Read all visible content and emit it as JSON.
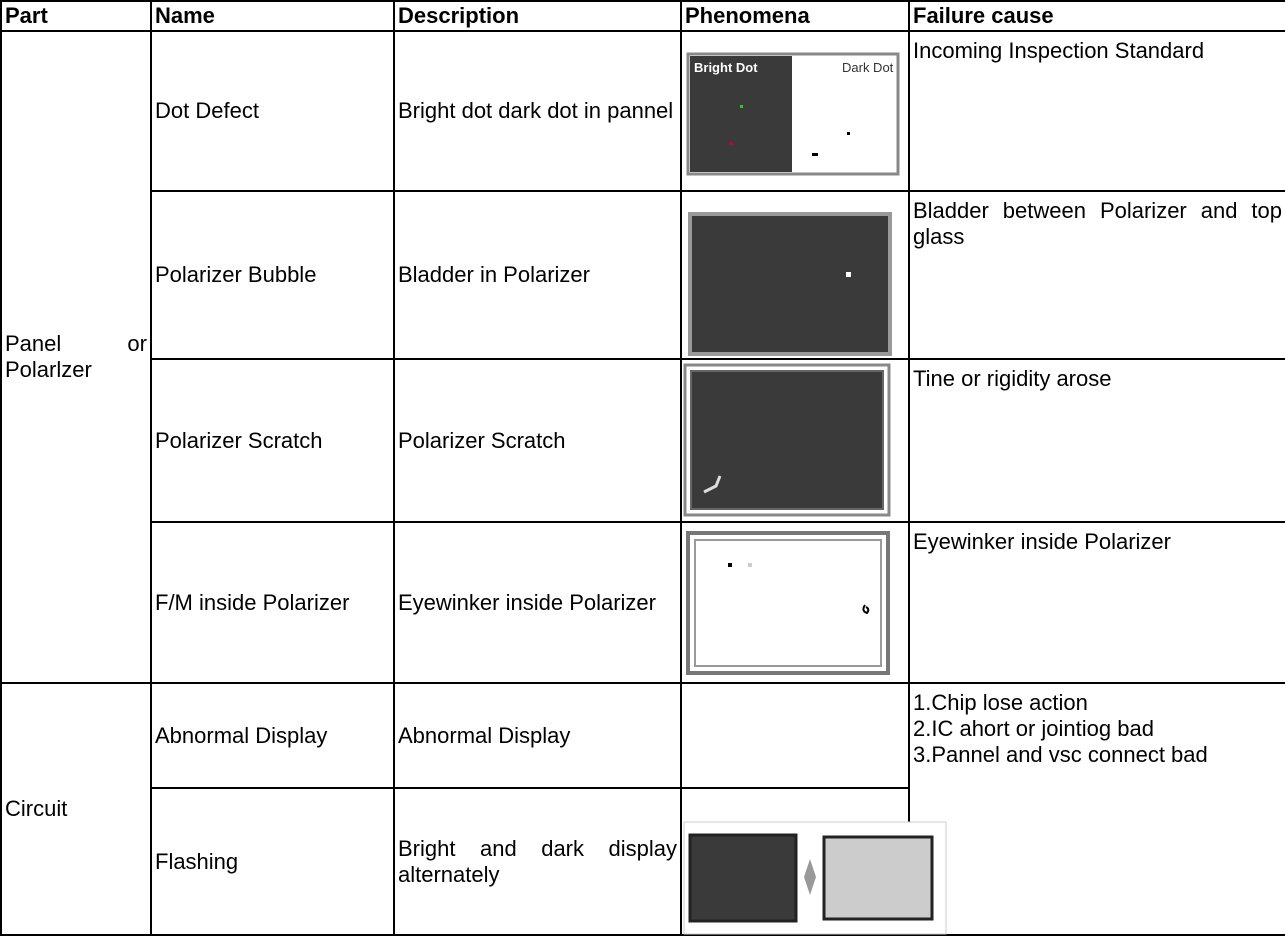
{
  "table": {
    "header": [
      "Part",
      "Name",
      "Description",
      "Phenomena",
      "Failure cause"
    ],
    "groups": [
      {
        "part": "Panel or Polarlzer",
        "rows": [
          {
            "name": "Dot Defect",
            "description": "Bright dot dark dot in pannel",
            "image_labels": [
              "Bright Dot",
              "Dark Dot"
            ],
            "cause": "Incoming Inspection Standard"
          },
          {
            "name": "Polarizer Bubble",
            "description": "Bladder in Polarizer",
            "cause": "Bladder between Polarizer and top glass"
          },
          {
            "name": "Polarizer Scratch",
            "description": "Polarizer Scratch",
            "cause": "Tine or rigidity arose"
          },
          {
            "name": "F/M inside Polarizer",
            "description": "Eyewinker inside Polarizer",
            "cause": "Eyewinker inside Polarizer"
          }
        ]
      },
      {
        "part": "Circuit",
        "cause": [
          "1.Chip lose action",
          "2.IC ahort or jointiog bad",
          "3.Pannel and vsc connect bad"
        ],
        "rows": [
          {
            "name": "Abnormal Display",
            "description": "Abnormal Display"
          },
          {
            "name": "Flashing",
            "description": "Bright and dark display alternately"
          }
        ]
      }
    ]
  }
}
